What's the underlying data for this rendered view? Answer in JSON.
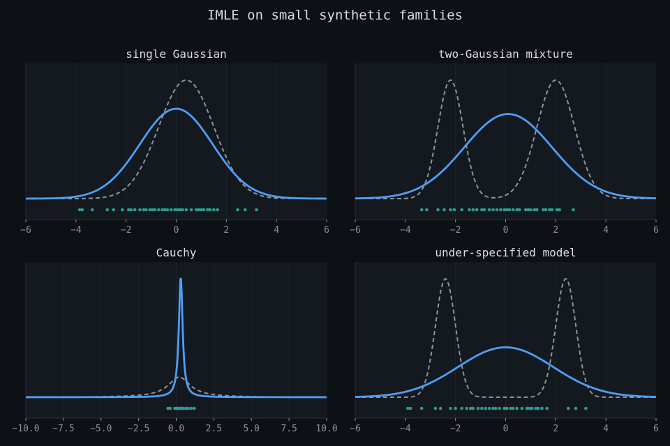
{
  "figure": {
    "title": "IMLE on small synthetic families"
  },
  "colors": {
    "background": "#0d1015",
    "panel": "#141920",
    "grid": "#1d232c",
    "fit_curve": "#4d9ff5",
    "true_curve": "#8f949c",
    "samples": "#2a9d8f",
    "tick_text": "#8a929e",
    "title_text": "#d8dde6"
  },
  "chart_data": [
    {
      "type": "line",
      "title": "single Gaussian",
      "xlim": [
        -6,
        6
      ],
      "xticks": [
        -6,
        -4,
        -2,
        0,
        2,
        4,
        6
      ],
      "xticklabels": [
        "−6",
        "−4",
        "−2",
        "0",
        "2",
        "4",
        "6"
      ],
      "grid": true,
      "xlabel": "",
      "ylabel": "",
      "legend": "none",
      "series": [
        {
          "role": "true density (dashed)",
          "kind": "gaussian",
          "components": [
            {
              "w": 1,
              "mu": 0.4,
              "sigma": 1.1
            }
          ]
        },
        {
          "role": "fitted density (solid)",
          "kind": "gaussian",
          "components": [
            {
              "w": 1,
              "mu": 0.0,
              "sigma": 1.45
            }
          ]
        }
      ],
      "samples": [
        -3.85,
        -3.75,
        -3.35,
        -2.75,
        -2.5,
        -2.15,
        -1.9,
        -1.8,
        -1.65,
        -1.45,
        -1.3,
        -1.2,
        -1.05,
        -0.95,
        -0.85,
        -0.7,
        -0.55,
        -0.45,
        -0.35,
        -0.2,
        -0.05,
        0.05,
        0.15,
        0.25,
        0.4,
        0.6,
        0.8,
        0.9,
        1.0,
        1.1,
        1.25,
        1.35,
        1.5,
        1.65,
        2.45,
        2.75,
        3.2
      ]
    },
    {
      "type": "line",
      "title": "two-Gaussian mixture",
      "xlim": [
        -6,
        6
      ],
      "xticks": [
        -6,
        -4,
        -2,
        0,
        2,
        4,
        6
      ],
      "xticklabels": [
        "−6",
        "−4",
        "−2",
        "0",
        "2",
        "4",
        "6"
      ],
      "grid": true,
      "xlabel": "",
      "ylabel": "",
      "legend": "none",
      "series": [
        {
          "role": "true density (dashed)",
          "kind": "gaussian",
          "components": [
            {
              "w": 0.4,
              "mu": -2.2,
              "sigma": 0.5
            },
            {
              "w": 0.6,
              "mu": 2.0,
              "sigma": 0.75
            }
          ]
        },
        {
          "role": "fitted density (solid)",
          "kind": "gaussian",
          "components": [
            {
              "w": 1,
              "mu": 0.1,
              "sigma": 1.75
            }
          ]
        }
      ],
      "samples": [
        -3.35,
        -3.15,
        -2.7,
        -2.45,
        -2.2,
        -2.05,
        -1.75,
        -1.45,
        -1.3,
        -1.15,
        -0.95,
        -0.85,
        -0.65,
        -0.5,
        -0.35,
        -0.2,
        -0.05,
        0.05,
        0.15,
        0.3,
        0.45,
        0.55,
        0.8,
        0.9,
        1.0,
        1.15,
        1.25,
        1.5,
        1.6,
        1.75,
        1.85,
        2.05,
        2.15,
        2.7
      ]
    },
    {
      "type": "line",
      "title": "Cauchy",
      "xlim": [
        -10,
        10
      ],
      "xticks": [
        -10,
        -7.5,
        -5,
        -2.5,
        0,
        2.5,
        5,
        7.5,
        10
      ],
      "xticklabels": [
        "−10.0",
        "−7.5",
        "−5.0",
        "−2.5",
        "0.0",
        "2.5",
        "5.0",
        "7.5",
        "10.0"
      ],
      "grid": true,
      "xlabel": "",
      "ylabel": "",
      "legend": "none",
      "series": [
        {
          "role": "true density (dashed)",
          "kind": "cauchy",
          "x0": 0.2,
          "gamma": 0.9
        },
        {
          "role": "fitted density (solid)",
          "kind": "cauchy",
          "x0": 0.3,
          "gamma": 0.15
        }
      ],
      "samples": [
        -0.55,
        -0.4,
        -0.1,
        0.0,
        0.1,
        0.2,
        0.3,
        0.4,
        0.5,
        0.65,
        0.8,
        1.0,
        1.2
      ]
    },
    {
      "type": "line",
      "title": "under-specified model",
      "xlim": [
        -6,
        6
      ],
      "xticks": [
        -6,
        -4,
        -2,
        0,
        2,
        4,
        6
      ],
      "xticklabels": [
        "−6",
        "−4",
        "−2",
        "0",
        "2",
        "4",
        "6"
      ],
      "grid": true,
      "xlabel": "",
      "ylabel": "",
      "legend": "none",
      "series": [
        {
          "role": "true density (dashed)",
          "kind": "gaussian",
          "components": [
            {
              "w": 0.5,
              "mu": -2.4,
              "sigma": 0.4
            },
            {
              "w": 0.5,
              "mu": 2.4,
              "sigma": 0.4
            }
          ]
        },
        {
          "role": "fitted density (solid)",
          "kind": "gaussian",
          "components": [
            {
              "w": 1,
              "mu": 0.0,
              "sigma": 1.9
            }
          ]
        }
      ],
      "samples": [
        -3.9,
        -3.8,
        -3.35,
        -2.8,
        -2.6,
        -2.2,
        -2.0,
        -1.75,
        -1.55,
        -1.4,
        -1.3,
        -1.1,
        -0.95,
        -0.8,
        -0.65,
        -0.5,
        -0.4,
        -0.25,
        -0.05,
        0.05,
        0.2,
        0.3,
        0.45,
        0.65,
        0.85,
        0.95,
        1.05,
        1.2,
        1.3,
        1.45,
        1.65,
        2.5,
        2.8,
        3.2
      ]
    }
  ]
}
